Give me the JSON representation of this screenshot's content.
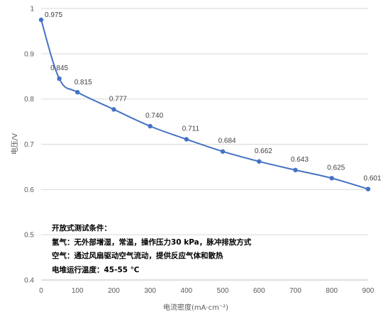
{
  "chart_data": {
    "type": "line",
    "x": [
      0,
      50,
      100,
      200,
      300,
      400,
      500,
      600,
      700,
      800,
      900
    ],
    "series": [
      {
        "values": [
          0.975,
          0.845,
          0.815,
          0.777,
          0.74,
          0.711,
          0.684,
          0.662,
          0.643,
          0.625,
          0.601
        ]
      }
    ],
    "data_labels": [
      "0.975",
      "0.845",
      "0.815",
      "0.777",
      "0.740",
      "0.711",
      "0.684",
      "0.662",
      "0.643",
      "0.625",
      "0.601"
    ],
    "xlabel": "电流密度(mA·cm⁻²)",
    "ylabel": "电压/V",
    "xlim": [
      0,
      900
    ],
    "ylim": [
      0.4,
      1
    ],
    "x_ticks": [
      "0",
      "100",
      "200",
      "300",
      "400",
      "500",
      "600",
      "700",
      "800",
      "900"
    ],
    "y_ticks": [
      "0.4",
      "0.5",
      "0.6",
      "0.7",
      "0.8",
      "0.9",
      "1"
    ],
    "grid": "horizontal",
    "line_color": "#4472C4",
    "grid_color": "#D9D9D9",
    "annotations": [
      "开放式测试条件：",
      "氢气：无外部增湿，常温，操作压力30 kPa，脉冲排放方式",
      "空气：通过风扇驱动空气流动，提供反应气体和散热",
      "电堆运行温度：45-55 ℃"
    ]
  }
}
